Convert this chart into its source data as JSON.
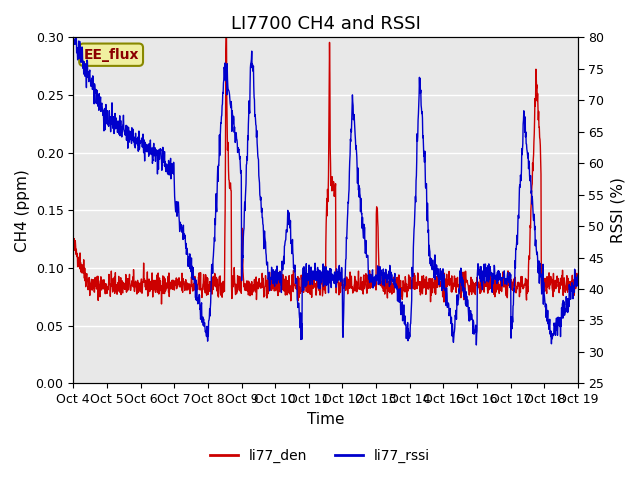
{
  "title": "LI7700 CH4 and RSSI",
  "xlabel": "Time",
  "ylabel_left": "CH4 (ppm)",
  "ylabel_right": "RSSI (%)",
  "label_box": "EE_flux",
  "legend_labels": [
    "li77_den",
    "li77_rssi"
  ],
  "legend_colors": [
    "#cc0000",
    "#0000cc"
  ],
  "left_ylim": [
    0.0,
    0.3
  ],
  "right_ylim": [
    25,
    80
  ],
  "left_yticks": [
    0.0,
    0.05,
    0.1,
    0.15,
    0.2,
    0.25,
    0.3
  ],
  "right_yticks": [
    25,
    30,
    35,
    40,
    45,
    50,
    55,
    60,
    65,
    70,
    75,
    80
  ],
  "xtick_labels": [
    "Oct 4",
    "Oct 5",
    "Oct 6",
    "Oct 7",
    "Oct 8",
    "Oct 9",
    "Oct 10",
    "Oct 11",
    "Oct 12",
    "Oct 13",
    "Oct 14",
    "Oct 15",
    "Oct 16",
    "Oct 17",
    "Oct 18",
    "Oct 19"
  ],
  "bg_color": "#e8e8e8",
  "title_fontsize": 13,
  "axis_label_fontsize": 11,
  "tick_fontsize": 9
}
